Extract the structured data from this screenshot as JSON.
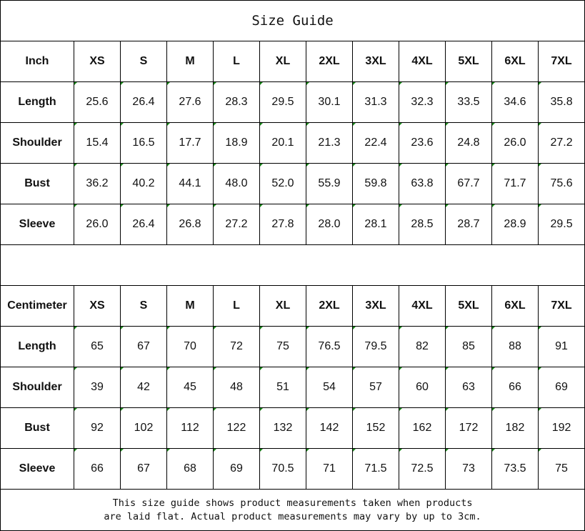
{
  "title": "Size Guide",
  "sizes": [
    "XS",
    "S",
    "M",
    "L",
    "XL",
    "2XL",
    "3XL",
    "4XL",
    "5XL",
    "6XL",
    "7XL"
  ],
  "inch": {
    "unit_label": "Inch",
    "rows": [
      {
        "label": "Length",
        "values": [
          "25.6",
          "26.4",
          "27.6",
          "28.3",
          "29.5",
          "30.1",
          "31.3",
          "32.3",
          "33.5",
          "34.6",
          "35.8"
        ]
      },
      {
        "label": "Shoulder",
        "values": [
          "15.4",
          "16.5",
          "17.7",
          "18.9",
          "20.1",
          "21.3",
          "22.4",
          "23.6",
          "24.8",
          "26.0",
          "27.2"
        ]
      },
      {
        "label": "Bust",
        "values": [
          "36.2",
          "40.2",
          "44.1",
          "48.0",
          "52.0",
          "55.9",
          "59.8",
          "63.8",
          "67.7",
          "71.7",
          "75.6"
        ]
      },
      {
        "label": "Sleeve",
        "values": [
          "26.0",
          "26.4",
          "26.8",
          "27.2",
          "27.8",
          "28.0",
          "28.1",
          "28.5",
          "28.7",
          "28.9",
          "29.5"
        ]
      }
    ]
  },
  "centimeter": {
    "unit_label": "Centimeter",
    "rows": [
      {
        "label": "Length",
        "values": [
          "65",
          "67",
          "70",
          "72",
          "75",
          "76.5",
          "79.5",
          "82",
          "85",
          "88",
          "91"
        ]
      },
      {
        "label": "Shoulder",
        "values": [
          "39",
          "42",
          "45",
          "48",
          "51",
          "54",
          "57",
          "60",
          "63",
          "66",
          "69"
        ]
      },
      {
        "label": "Bust",
        "values": [
          "92",
          "102",
          "112",
          "122",
          "132",
          "142",
          "152",
          "162",
          "172",
          "182",
          "192"
        ]
      },
      {
        "label": "Sleeve",
        "values": [
          "66",
          "67",
          "68",
          "69",
          "70.5",
          "71",
          "71.5",
          "72.5",
          "73",
          "73.5",
          "75"
        ]
      }
    ]
  },
  "footer": {
    "line1": "This size guide shows product measurements taken when products",
    "line2": "are laid flat. Actual product measurements may vary by up to 3cm."
  },
  "colors": {
    "cell_marker": "#1a8a1a",
    "border": "#000000"
  }
}
